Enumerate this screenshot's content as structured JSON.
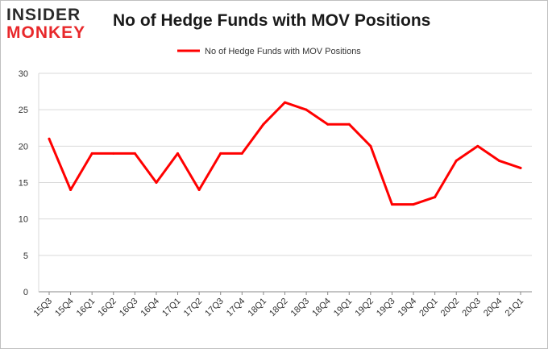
{
  "logo": {
    "line1": "INSIDER",
    "line2": "MONKEY"
  },
  "chart_data": {
    "type": "line",
    "title": "No of Hedge Funds with MOV Positions",
    "xlabel": "",
    "ylabel": "",
    "categories": [
      "15Q3",
      "15Q4",
      "16Q1",
      "16Q2",
      "16Q3",
      "16Q4",
      "17Q1",
      "17Q2",
      "17Q3",
      "17Q4",
      "18Q1",
      "18Q2",
      "18Q3",
      "18Q4",
      "19Q1",
      "19Q2",
      "19Q3",
      "19Q4",
      "20Q1",
      "20Q2",
      "20Q3",
      "20Q4",
      "21Q1"
    ],
    "series": [
      {
        "name": "No of Hedge Funds with MOV Positions",
        "color": "#ff0000",
        "values": [
          21,
          14,
          19,
          19,
          19,
          15,
          19,
          14,
          19,
          19,
          23,
          26,
          25,
          23,
          23,
          20,
          12,
          12,
          13,
          18,
          20,
          18,
          17
        ]
      }
    ],
    "ylim": [
      0,
      30
    ],
    "yticks": [
      0,
      5,
      10,
      15,
      20,
      25,
      30
    ],
    "grid": true,
    "legend_position": "top-center"
  }
}
